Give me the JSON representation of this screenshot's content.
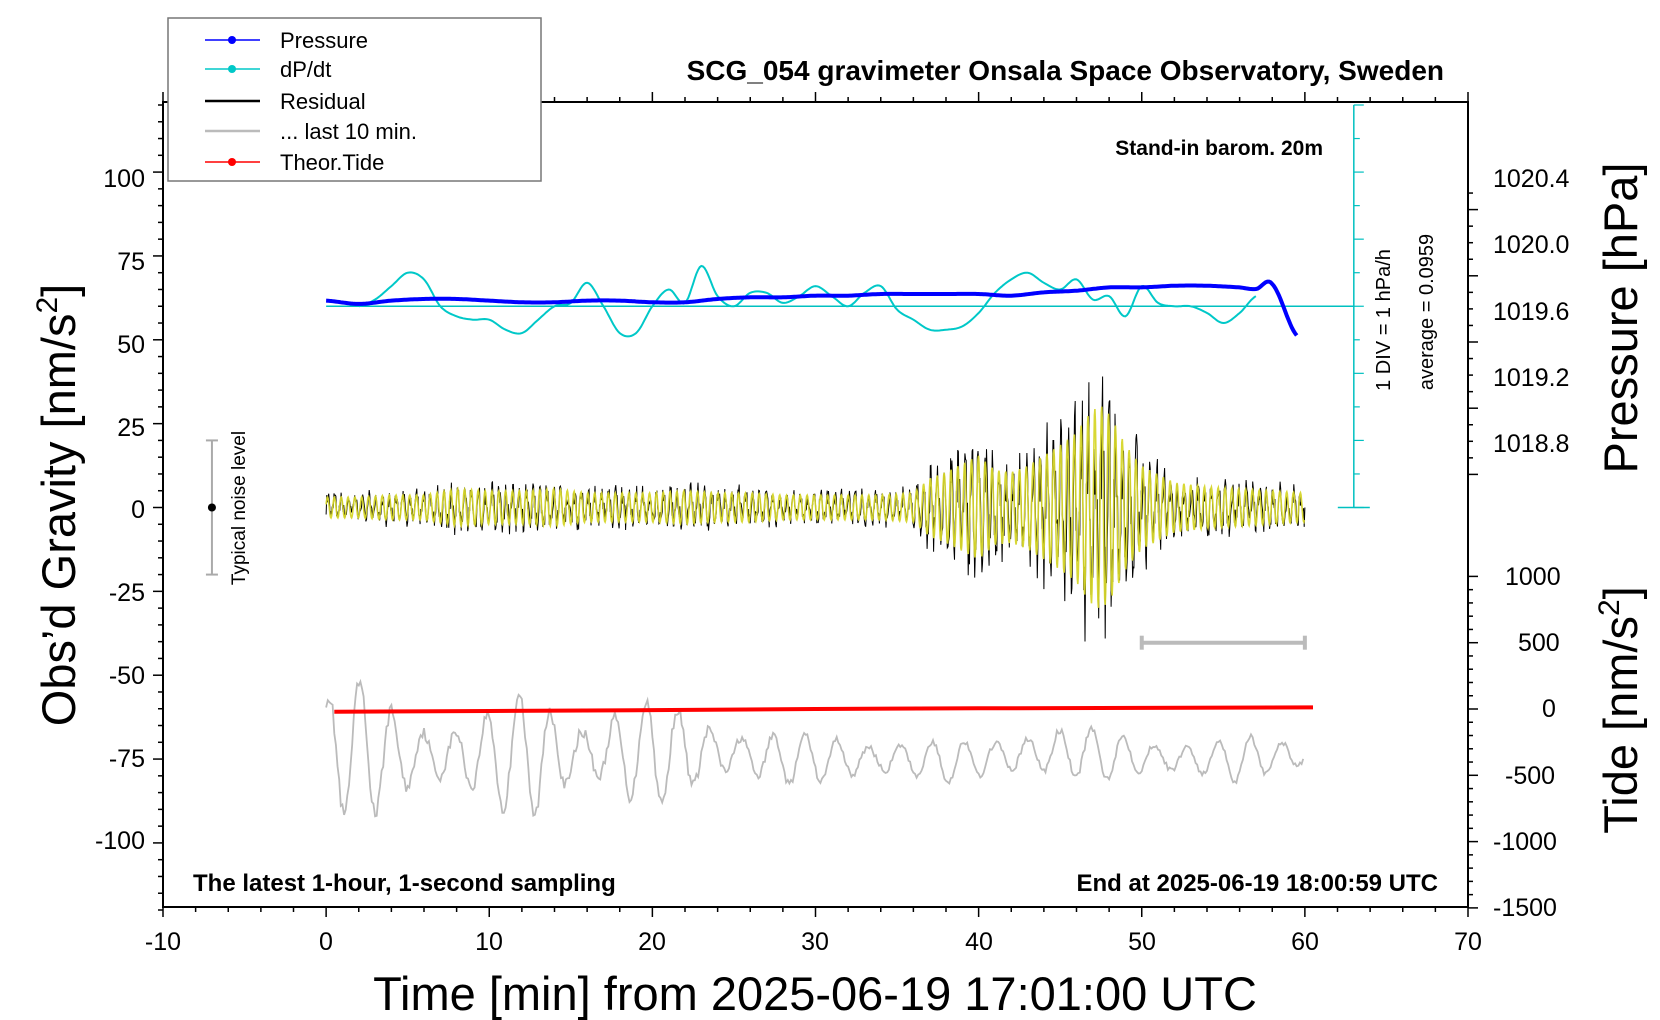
{
  "chart_data": {
    "type": "line",
    "title": "SCG_054 gravimeter Onsala Space Observatory, Sweden",
    "annotations": {
      "barometer": "Stand-in barom. 20m",
      "bottom_left": "The latest 1-hour, 1-second sampling",
      "bottom_right": "End at 2025-06-19 18:00:59 UTC",
      "scale_div": "1 DIV = 1 hPa/h",
      "scale_avg": "average = 0.0959",
      "noise_level": "Typical noise level"
    },
    "xlabel": "Time [min] from 2025-06-19 17:01:00 UTC",
    "xlim": [
      -10,
      70
    ],
    "xticks": [
      "-10",
      "0",
      "10",
      "20",
      "30",
      "40",
      "50",
      "60",
      "70"
    ],
    "ylabel_left_main": "Obs’d Gravity [nm/s",
    "ylabel_left_sup": "2",
    "ylabel_left_end": "]",
    "ylim_left": [
      -120,
      120
    ],
    "yticks_left": [
      "100",
      "75",
      "50",
      "25",
      "0",
      "-25",
      "-50",
      "-75",
      "-100"
    ],
    "ylabel_pressure": "Pressure [hPa]",
    "yticks_pressure": [
      "1020.4",
      "1020.0",
      "1019.6",
      "1019.2",
      "1018.8"
    ],
    "ylabel_tide_main": "Tide [nm/s",
    "ylabel_tide_sup": "2",
    "ylabel_tide_end": "]",
    "yticks_tide": [
      "1000",
      "500",
      "0",
      "-500",
      "-1000",
      "-1500"
    ],
    "legend": {
      "placement": "top-left",
      "entries": [
        {
          "name": "Pressure",
          "color": "#0000ff",
          "marker": true
        },
        {
          "name": "dP/dt",
          "color": "#00c8c8",
          "marker": true
        },
        {
          "name": "Residual",
          "color": "#000000",
          "marker": false
        },
        {
          "name": "... last 10 min.",
          "color": "#bbbbbb",
          "marker": false
        },
        {
          "name": "Theor.Tide",
          "color": "#ff0000",
          "marker": true
        }
      ]
    },
    "series": [
      {
        "name": "Pressure",
        "axis": "pressure",
        "color": "#0000ff",
        "x": [
          0,
          2,
          4,
          6,
          8,
          10,
          12,
          14,
          16,
          18,
          20,
          22,
          24,
          26,
          28,
          30,
          32,
          34,
          36,
          38,
          40,
          42,
          44,
          46,
          48,
          50,
          52,
          54,
          56,
          57,
          58,
          59.5
        ],
        "y": [
          1019.85,
          1019.83,
          1019.85,
          1019.86,
          1019.86,
          1019.85,
          1019.84,
          1019.84,
          1019.85,
          1019.85,
          1019.84,
          1019.84,
          1019.86,
          1019.87,
          1019.87,
          1019.88,
          1019.88,
          1019.89,
          1019.89,
          1019.89,
          1019.89,
          1019.88,
          1019.9,
          1019.91,
          1019.93,
          1019.93,
          1019.94,
          1019.94,
          1019.93,
          1019.92,
          1019.95,
          1019.64
        ]
      },
      {
        "name": "dP/dt",
        "axis": "gravity",
        "color": "#00c8c8",
        "x": [
          2,
          3,
          4,
          5,
          6,
          7,
          8,
          9,
          10,
          11,
          12,
          13,
          14,
          15,
          16,
          17,
          18,
          19,
          20,
          21,
          22,
          23,
          24,
          25,
          26,
          27,
          28,
          29,
          30,
          31,
          32,
          33,
          34,
          35,
          36,
          37,
          38,
          39,
          40,
          41,
          42,
          43,
          44,
          45,
          46,
          47,
          48,
          49,
          50,
          51,
          52,
          53,
          54,
          55,
          56,
          57
        ],
        "y": [
          60,
          62,
          66,
          70,
          68,
          60,
          57,
          56,
          56,
          53,
          52,
          56,
          60,
          61,
          67,
          60,
          52,
          52,
          60,
          65,
          61,
          72,
          63,
          60,
          64,
          64,
          61,
          63,
          66,
          63,
          60,
          64,
          66,
          59,
          56,
          53,
          53,
          54,
          58,
          64,
          68,
          70,
          67,
          65,
          68,
          62,
          63,
          57,
          66,
          61,
          60,
          60,
          58,
          55,
          58,
          63
        ]
      },
      {
        "name": "Residual",
        "axis": "gravity",
        "color": "#000000",
        "x": [
          0,
          2,
          4,
          6,
          8,
          10,
          12,
          14,
          16,
          18,
          20,
          22,
          24,
          26,
          28,
          30,
          32,
          34,
          36,
          37,
          38,
          39,
          40,
          41,
          42,
          43,
          44,
          45,
          46,
          46.5,
          47,
          47.5,
          48,
          48.5,
          49,
          50,
          52,
          54,
          56,
          58,
          60
        ],
        "amp": [
          5,
          5,
          6,
          6,
          9,
          8,
          8,
          9,
          7,
          7,
          7,
          8,
          7,
          7,
          6,
          6,
          6,
          6,
          7,
          14,
          17,
          21,
          25,
          18,
          17,
          20,
          25,
          30,
          36,
          42,
          47,
          49,
          45,
          38,
          30,
          20,
          12,
          10,
          9,
          8,
          7
        ]
      },
      {
        "name": "... last 10 min.",
        "axis": "gravity",
        "color": "#bbbbbb",
        "x": [
          0,
          1,
          2,
          3,
          4,
          5,
          6,
          8,
          10,
          12,
          13,
          14,
          16,
          18,
          20,
          22,
          24,
          26,
          28,
          30,
          32,
          34,
          36,
          38,
          40,
          42,
          44,
          46,
          48,
          50,
          52,
          54,
          56,
          58,
          60
        ],
        "center": [
          -70,
          -72,
          -72,
          -74,
          -74,
          -74,
          -74,
          -74,
          -74,
          -74,
          -74,
          -74,
          -73,
          -73,
          -73,
          -73,
          -73,
          -74,
          -75,
          -75,
          -75,
          -75,
          -75,
          -76,
          -75,
          -74,
          -73,
          -73,
          -74,
          -74,
          -75,
          -75,
          -75,
          -74,
          -74
        ],
        "amp": [
          18,
          22,
          20,
          18,
          16,
          14,
          13,
          12,
          14,
          20,
          21,
          19,
          12,
          15,
          16,
          14,
          11,
          9,
          8,
          7,
          8,
          7,
          6,
          6,
          6,
          8,
          9,
          8,
          7,
          7,
          7,
          6,
          7,
          6,
          5
        ]
      },
      {
        "name": "Theor.Tide",
        "axis": "tide",
        "color": "#ff0000",
        "x": [
          0.5,
          10,
          20,
          30,
          40,
          50,
          60.5
        ],
        "y": [
          -20,
          -15,
          -8,
          0,
          5,
          8,
          12
        ]
      }
    ],
    "yellow_overlay": {
      "color": "#d6d62a"
    },
    "noise_bar": {
      "x": -7,
      "y": 0,
      "range": [
        -20,
        20
      ]
    },
    "grey_bar": {
      "x": [
        50,
        60
      ],
      "tide_y": 500
    },
    "scale_bar": {
      "x": 63,
      "top_y": 120,
      "bottom_y": 0
    }
  }
}
